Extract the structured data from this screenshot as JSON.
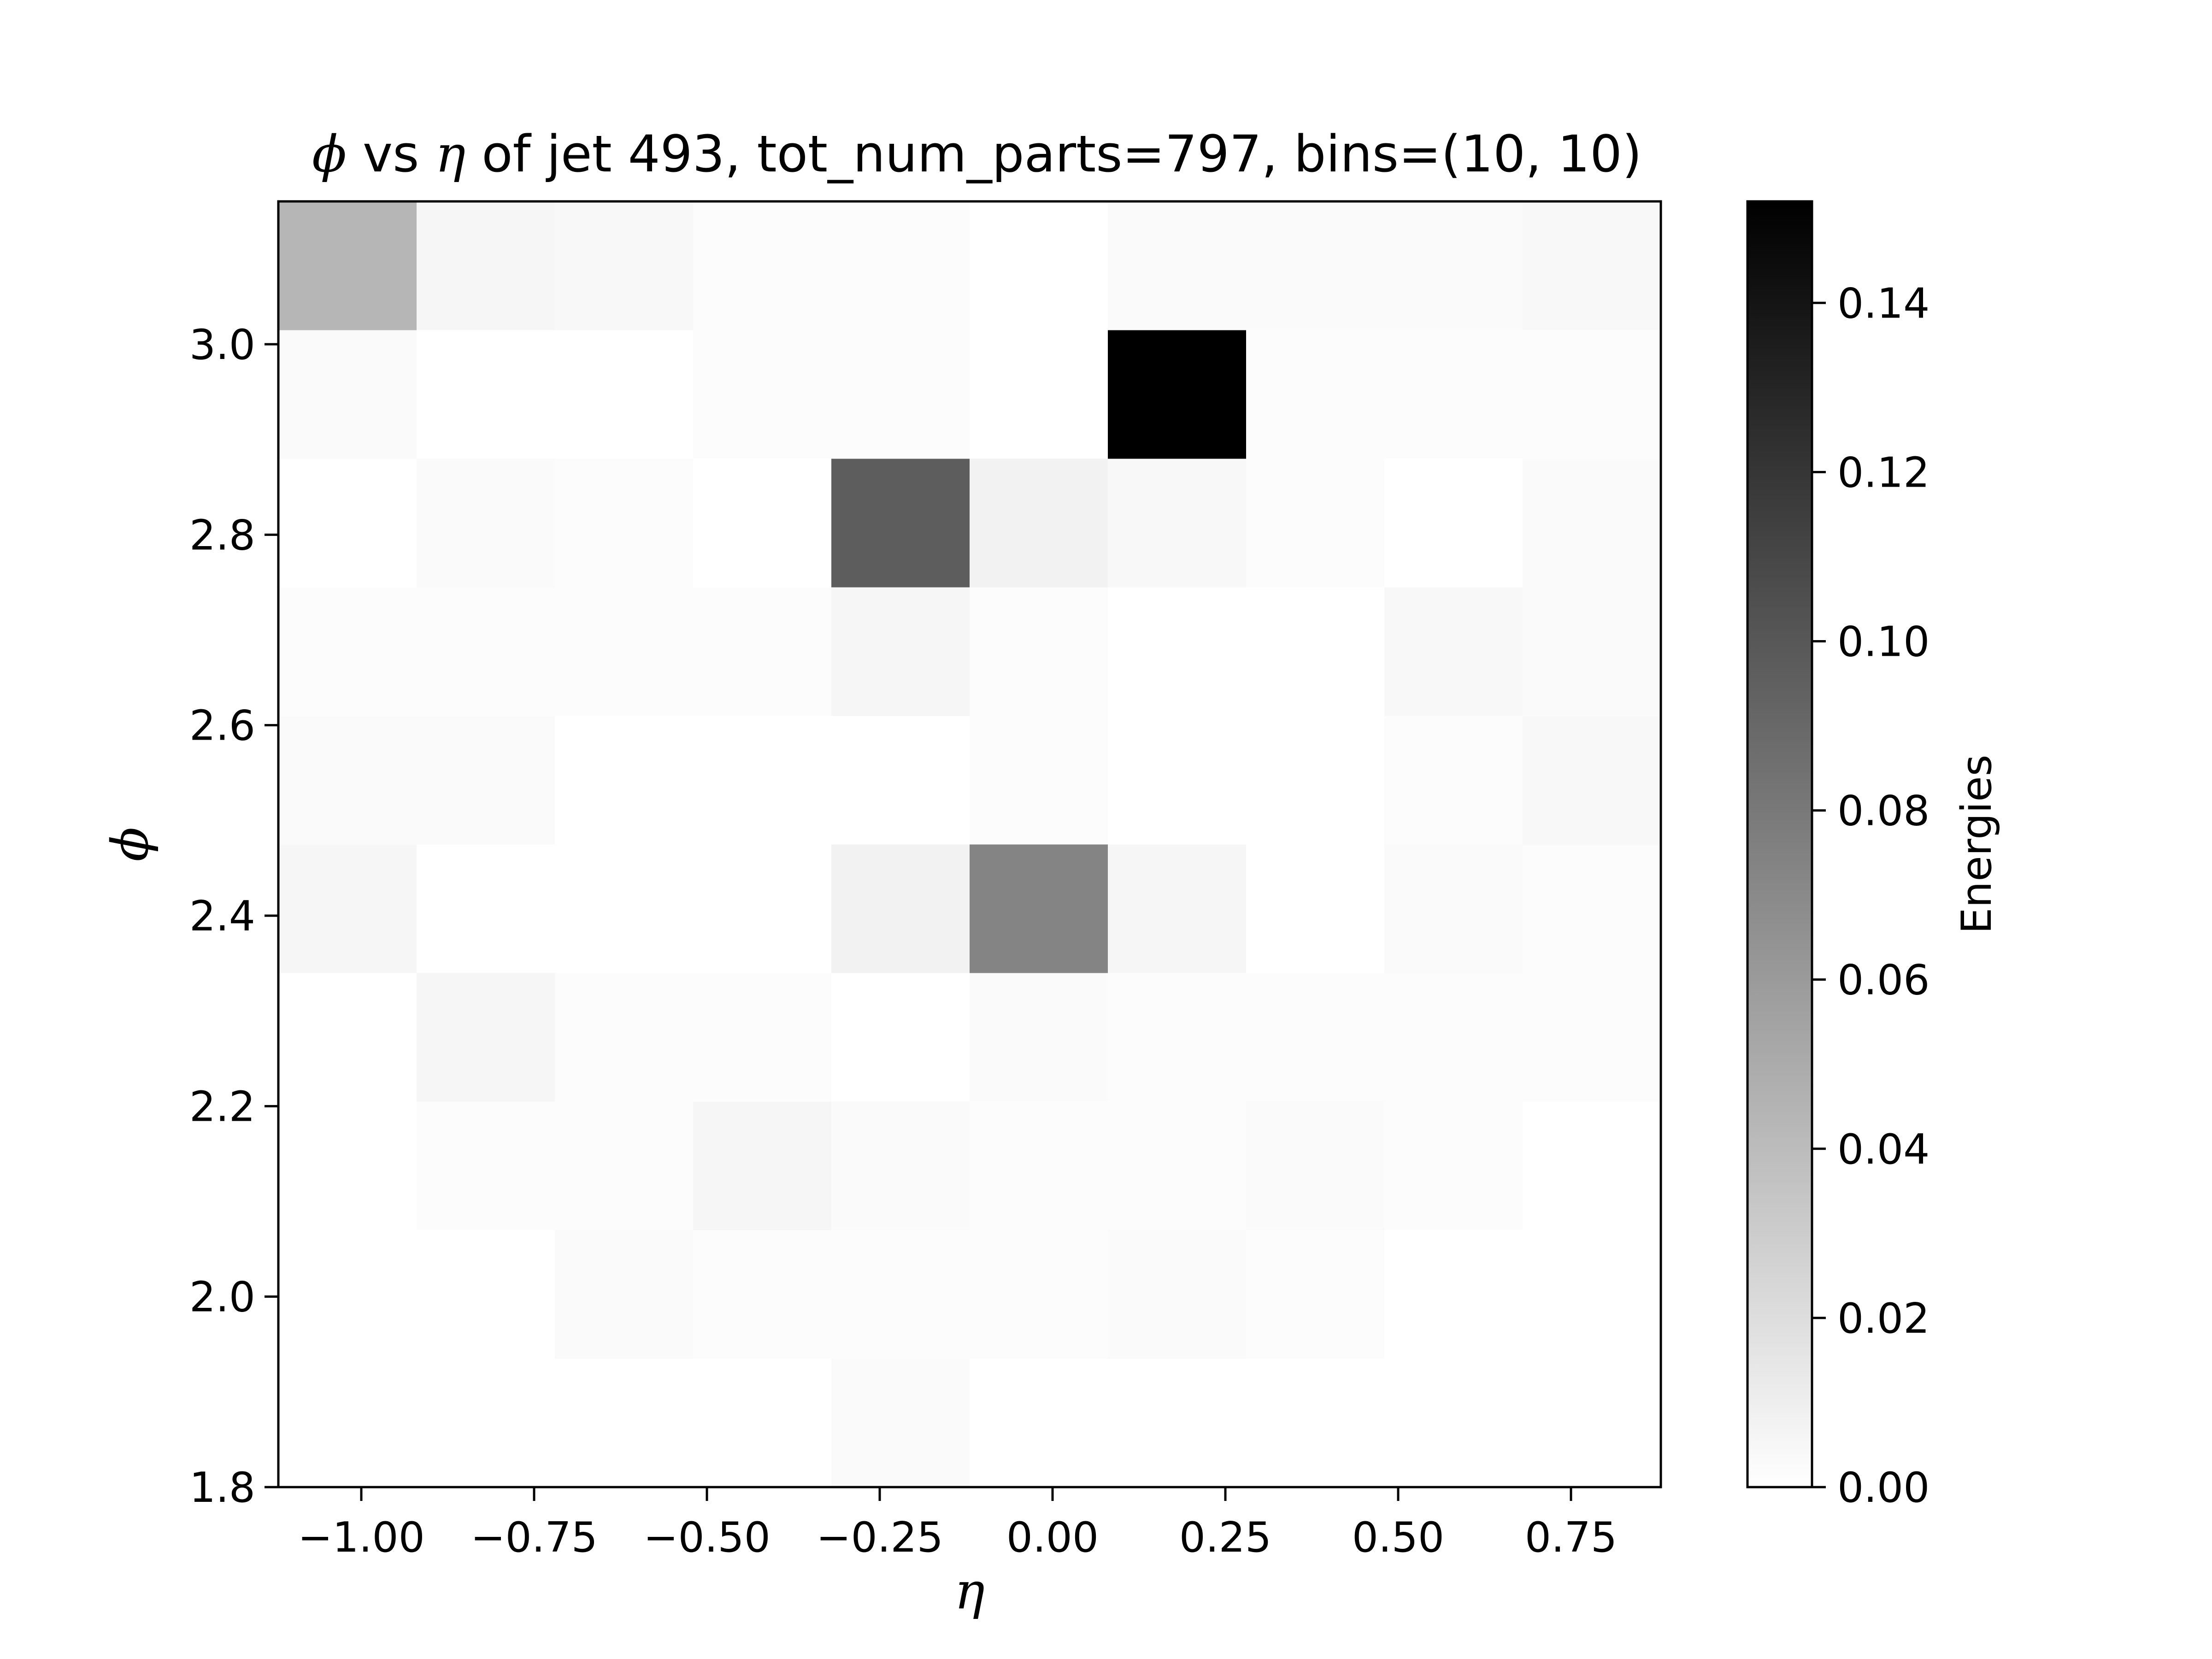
{
  "chart_data": {
    "type": "heatmap",
    "title_parts": {
      "sym1": "ϕ",
      "mid1": " vs ",
      "sym2": "η",
      "rest": " of jet 493, tot_num_parts=797, bins=(10, 10)"
    },
    "xlabel": "η",
    "ylabel": "ϕ",
    "colorbar_label": "Energies",
    "colormap": "Greys",
    "x_edges": [
      -1.12,
      -0.92,
      -0.72,
      -0.52,
      -0.32,
      -0.12,
      0.08,
      0.28,
      0.48,
      0.68,
      0.88
    ],
    "y_edges": [
      1.8,
      1.935,
      2.07,
      2.205,
      2.34,
      2.475,
      2.61,
      2.745,
      2.88,
      3.015,
      3.15
    ],
    "xlim": [
      -1.12,
      0.88
    ],
    "ylim": [
      1.8,
      3.15
    ],
    "xticks": [
      -1.0,
      -0.75,
      -0.5,
      -0.25,
      0.0,
      0.25,
      0.5,
      0.75
    ],
    "xtick_labels": [
      "−1.00",
      "−0.75",
      "−0.50",
      "−0.25",
      "0.00",
      "0.25",
      "0.50",
      "0.75"
    ],
    "yticks": [
      1.8,
      2.0,
      2.2,
      2.4,
      2.6,
      2.8,
      3.0
    ],
    "ytick_labels": [
      "1.8",
      "2.0",
      "2.2",
      "2.4",
      "2.6",
      "2.8",
      "3.0"
    ],
    "clim": [
      0.0,
      0.152
    ],
    "cbar_ticks": [
      0.0,
      0.02,
      0.04,
      0.06,
      0.08,
      0.1,
      0.12,
      0.14
    ],
    "cbar_tick_labels": [
      "0.00",
      "0.02",
      "0.04",
      "0.06",
      "0.08",
      "0.10",
      "0.12",
      "0.14"
    ],
    "values": [
      [
        0.0,
        0.0,
        0.0,
        0.0,
        0.002,
        0.0,
        0.0,
        0.0,
        0.0,
        0.0
      ],
      [
        0.0,
        0.0,
        0.002,
        0.001,
        0.001,
        0.001,
        0.002,
        0.001,
        0.0,
        0.0
      ],
      [
        0.0,
        0.001,
        0.001,
        0.004,
        0.002,
        0.001,
        0.001,
        0.002,
        0.001,
        0.0
      ],
      [
        0.0,
        0.004,
        0.001,
        0.001,
        0.0,
        0.002,
        0.001,
        0.001,
        0.001,
        0.001
      ],
      [
        0.004,
        0.0,
        0.0,
        0.0,
        0.006,
        0.069,
        0.004,
        0.0,
        0.002,
        0.001
      ],
      [
        0.002,
        0.002,
        0.0,
        0.0,
        0.0,
        0.001,
        0.0,
        0.0,
        0.001,
        0.003
      ],
      [
        0.001,
        0.001,
        0.001,
        0.001,
        0.004,
        0.001,
        0.0,
        0.0,
        0.003,
        0.002
      ],
      [
        0.0,
        0.002,
        0.001,
        0.0,
        0.093,
        0.006,
        0.003,
        0.001,
        0.0,
        0.002
      ],
      [
        0.002,
        0.0,
        0.0,
        0.001,
        0.001,
        0.0,
        0.152,
        0.001,
        0.001,
        0.001
      ],
      [
        0.039,
        0.004,
        0.003,
        0.001,
        0.001,
        0.0,
        0.002,
        0.002,
        0.002,
        0.003
      ]
    ]
  }
}
